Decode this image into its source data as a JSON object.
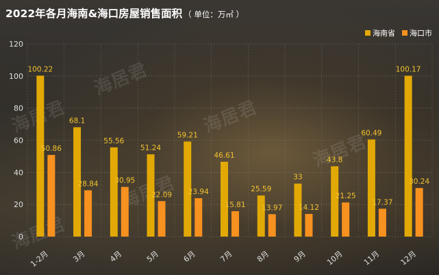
{
  "title": "2022年各月海南&海口房屋销售面积",
  "unit": "（ 单位：万㎡ ）",
  "watermark": "海居君",
  "colors": {
    "province": "#e2a906",
    "city": "#f7911f",
    "label": "#f2c230",
    "grid": "#8a8782",
    "tick": "#e0e0e0"
  },
  "chart_data": {
    "type": "bar",
    "title": "2022年各月海南&海口房屋销售面积",
    "xlabel": "",
    "ylabel": "",
    "ylim": [
      0,
      120
    ],
    "yticks": [
      0,
      20,
      40,
      60,
      80,
      100,
      120
    ],
    "grid": true,
    "legend_position": "top-right",
    "categories": [
      "1-2月",
      "3月",
      "4月",
      "5月",
      "6月",
      "7月",
      "8月",
      "9月",
      "10月",
      "11月",
      "12月"
    ],
    "series": [
      {
        "name": "海南省",
        "values": [
          100.22,
          68.1,
          55.56,
          51.24,
          59.21,
          46.61,
          25.59,
          33,
          43.8,
          60.49,
          100.17
        ]
      },
      {
        "name": "海口市",
        "values": [
          50.86,
          28.84,
          30.95,
          22.09,
          23.94,
          15.81,
          13.97,
          14.12,
          21.25,
          17.37,
          30.24
        ]
      }
    ]
  }
}
